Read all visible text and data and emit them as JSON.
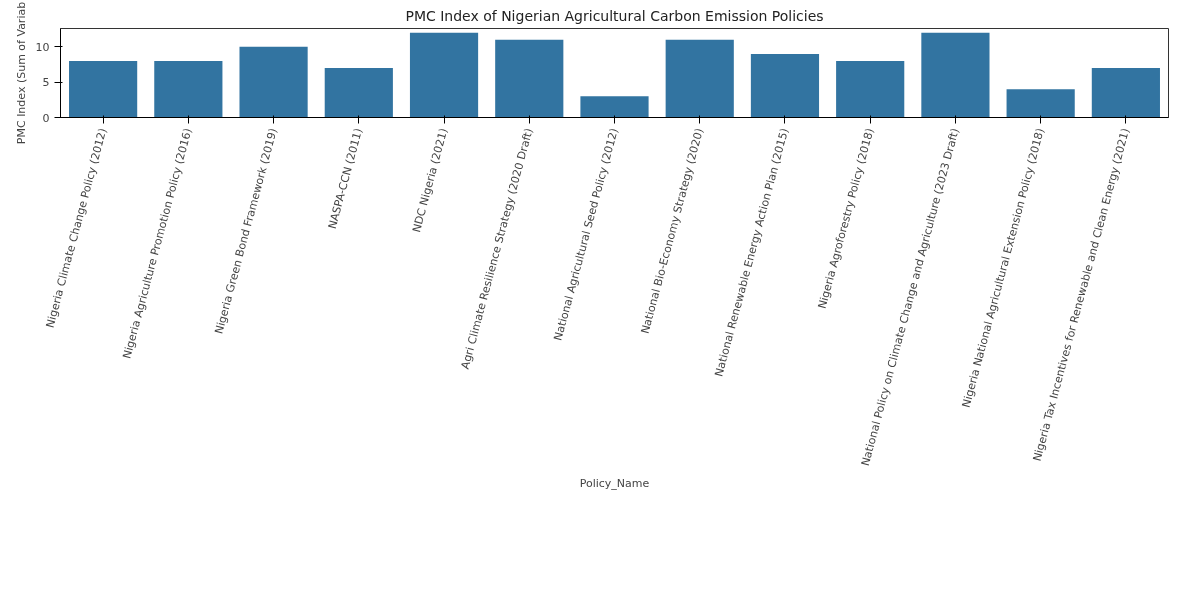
{
  "chart_data": {
    "type": "bar",
    "title": "PMC Index of Nigerian Agricultural Carbon Emission Policies",
    "xlabel": "Policy_Name",
    "ylabel": "PMC Index (Sum of Variab",
    "categories": [
      "Nigeria Climate Change Policy (2012)",
      "Nigeria Agriculture Promotion Policy (2016)",
      "Nigeria Green Bond Framework (2019)",
      "NASPA-CCN (2011)",
      "NDC Nigeria (2021)",
      "Agri Climate Resilience Strategy (2020 Draft)",
      "National Agricultural Seed Policy (2012)",
      "National Bio-Economy Strategy (2020)",
      "National Renewable Energy Action Plan (2015)",
      "Nigeria Agroforestry Policy (2018)",
      "National Policy on Climate Change and Agriculture (2023 Draft)",
      "Nigeria National Agricultural Extension Policy (2018)",
      "Nigeria Tax Incentives for Renewable and Clean Energy (2021)"
    ],
    "values": [
      8,
      8,
      10,
      7,
      12,
      11,
      3,
      11,
      9,
      8,
      12,
      4,
      7
    ],
    "color": "#3274a1",
    "ylim": [
      0,
      12.6
    ],
    "yticks": [
      0,
      5,
      10
    ],
    "grid": false
  }
}
